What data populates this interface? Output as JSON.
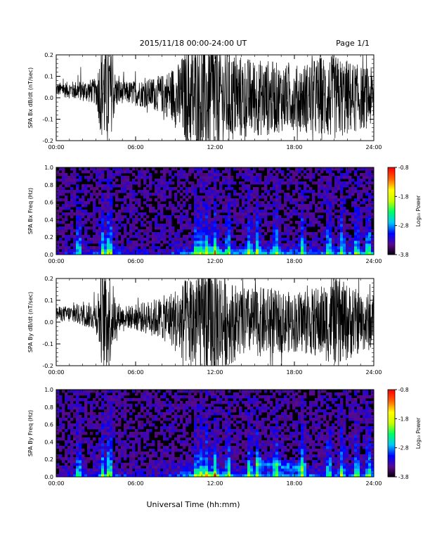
{
  "header": {
    "title": "2015/11/18  00:00-24:00 UT",
    "page": "Page 1/1"
  },
  "footer": {
    "xlabel": "Universal Time (hh:mm)"
  },
  "colors": {
    "trace": "#000000",
    "background": "#ffffff",
    "colormap": [
      "#000000",
      "#5a0a8c",
      "#0000ff",
      "#00c8ff",
      "#00ff64",
      "#c8ff00",
      "#ffff00",
      "#ff6400",
      "#ff0000"
    ]
  },
  "chart_data": [
    {
      "type": "line",
      "id": "bx",
      "ylabel": "SPA Bx dB/dt (nT/sec)",
      "xlim": [
        0,
        24
      ],
      "ylim": [
        -0.2,
        0.2
      ],
      "xticks": [
        "00:00",
        "06:00",
        "12:00",
        "18:00",
        "24:00"
      ],
      "yticks": [
        "-0.2",
        "-0.1",
        "0.0",
        "0.1",
        "0.2"
      ],
      "amplitude_profile": {
        "hours": [
          0,
          1,
          2,
          3,
          3.5,
          4,
          4.5,
          5,
          6,
          7,
          8,
          9,
          10,
          10.5,
          11,
          12,
          12.5,
          13,
          14,
          15,
          16,
          17,
          18,
          19,
          20,
          21,
          22,
          23,
          24
        ],
        "amplitude": [
          0.03,
          0.04,
          0.05,
          0.06,
          0.25,
          0.25,
          0.08,
          0.05,
          0.06,
          0.07,
          0.09,
          0.14,
          0.25,
          0.28,
          0.3,
          0.3,
          0.25,
          0.22,
          0.2,
          0.18,
          0.18,
          0.16,
          0.15,
          0.17,
          0.2,
          0.2,
          0.18,
          0.15,
          0.14
        ]
      }
    },
    {
      "type": "heatmap",
      "id": "bx_spec",
      "ylabel": "SPA Bx Freq (Hz)",
      "xlim": [
        0,
        24
      ],
      "ylim": [
        0,
        1.0
      ],
      "xticks": [
        "00:00",
        "06:00",
        "12:00",
        "18:00",
        "24:00"
      ],
      "yticks": [
        "0.0",
        "0.2",
        "0.4",
        "0.6",
        "0.8",
        "1.0"
      ],
      "colorbar": {
        "label": "Log₁₀ Power",
        "range": [
          -3.8,
          -0.8
        ],
        "ticks": [
          "-0.8",
          "-1.8",
          "-2.8",
          "-3.8"
        ]
      },
      "bursts_hours": [
        1.7,
        3.5,
        3.9,
        4.1,
        10.6,
        11.0,
        11.4,
        12.0,
        13.0,
        14.6,
        15.2,
        16.6,
        18.6,
        20.6,
        21.6,
        22.7,
        23.6
      ]
    },
    {
      "type": "line",
      "id": "by",
      "ylabel": "SPA By dB/dt (nT/sec)",
      "xlim": [
        0,
        24
      ],
      "ylim": [
        -0.2,
        0.2
      ],
      "xticks": [
        "00:00",
        "06:00",
        "12:00",
        "18:00",
        "24:00"
      ],
      "yticks": [
        "-0.2",
        "-0.1",
        "0.0",
        "0.1",
        "0.2"
      ],
      "amplitude_profile": {
        "hours": [
          0,
          1,
          2,
          3,
          3.5,
          4,
          4.5,
          5,
          6,
          7,
          8,
          9,
          10,
          10.5,
          11,
          12,
          12.5,
          13,
          14,
          15,
          16,
          17,
          18,
          19,
          20,
          21,
          22,
          23,
          24
        ],
        "amplitude": [
          0.03,
          0.04,
          0.05,
          0.07,
          0.25,
          0.25,
          0.08,
          0.05,
          0.06,
          0.08,
          0.1,
          0.14,
          0.22,
          0.28,
          0.3,
          0.3,
          0.24,
          0.2,
          0.16,
          0.16,
          0.16,
          0.14,
          0.14,
          0.15,
          0.17,
          0.2,
          0.18,
          0.14,
          0.13
        ]
      }
    },
    {
      "type": "heatmap",
      "id": "by_spec",
      "ylabel": "SPA By Freq (Hz)",
      "xlim": [
        0,
        24
      ],
      "ylim": [
        0,
        1.0
      ],
      "xticks": [
        "00:00",
        "06:00",
        "12:00",
        "18:00",
        "24:00"
      ],
      "yticks": [
        "0.0",
        "0.2",
        "0.4",
        "0.6",
        "0.8",
        "1.0"
      ],
      "colorbar": {
        "label": "Log₁₀ Power",
        "range": [
          -3.8,
          -0.8
        ],
        "ticks": [
          "-0.8",
          "-1.8",
          "-2.8",
          "-3.8"
        ]
      },
      "bursts_hours": [
        1.7,
        3.5,
        3.9,
        4.1,
        10.6,
        11.0,
        11.4,
        12.0,
        13.0,
        14.6,
        15.2,
        16.6,
        18.6,
        20.6,
        21.6,
        22.7,
        23.6
      ]
    }
  ]
}
